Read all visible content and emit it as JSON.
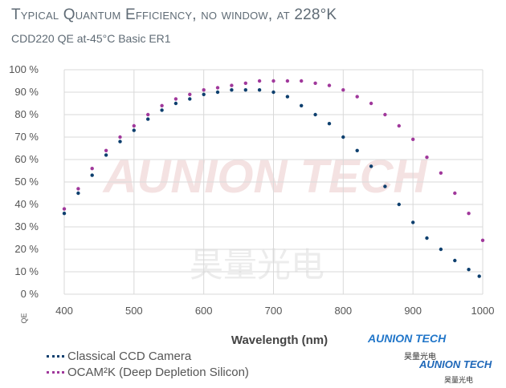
{
  "chart_data": {
    "type": "scatter",
    "title": "Typical Quantum Efficiency, no window, at 228°K",
    "subtitle": "CDD220 QE at-45°C Basic ER1",
    "xlabel": "Wavelength (nm)",
    "ylabel": "QE",
    "xlim": [
      400,
      1000
    ],
    "ylim": [
      0,
      100
    ],
    "x_ticks": [
      "400",
      "500",
      "600",
      "700",
      "800",
      "900",
      "1000"
    ],
    "y_ticks": [
      "0 %",
      "10 %",
      "20 %",
      "30 %",
      "40 %",
      "50 %",
      "60 %",
      "70 %",
      "80 %",
      "90 %",
      "100 %"
    ],
    "grid": true,
    "legend_position": "bottom-left",
    "series": [
      {
        "name": "Classical CCD Camera",
        "color": "#0d3f6e",
        "points": [
          [
            400,
            36
          ],
          [
            420,
            45
          ],
          [
            440,
            53
          ],
          [
            460,
            62
          ],
          [
            480,
            68
          ],
          [
            500,
            73
          ],
          [
            520,
            78
          ],
          [
            540,
            82
          ],
          [
            560,
            85
          ],
          [
            580,
            87
          ],
          [
            600,
            89
          ],
          [
            620,
            90
          ],
          [
            640,
            91
          ],
          [
            660,
            91
          ],
          [
            680,
            91
          ],
          [
            700,
            90
          ],
          [
            720,
            88
          ],
          [
            740,
            84
          ],
          [
            760,
            80
          ],
          [
            780,
            76
          ],
          [
            800,
            70
          ],
          [
            820,
            64
          ],
          [
            840,
            57
          ],
          [
            860,
            48
          ],
          [
            880,
            40
          ],
          [
            900,
            32
          ],
          [
            920,
            25
          ],
          [
            940,
            20
          ],
          [
            960,
            15
          ],
          [
            980,
            11
          ],
          [
            995,
            8
          ]
        ]
      },
      {
        "name": "OCAM²K (Deep Depletion Silicon)",
        "color": "#a0389b",
        "points": [
          [
            400,
            38
          ],
          [
            420,
            47
          ],
          [
            440,
            56
          ],
          [
            460,
            64
          ],
          [
            480,
            70
          ],
          [
            500,
            75
          ],
          [
            520,
            80
          ],
          [
            540,
            84
          ],
          [
            560,
            87
          ],
          [
            580,
            89
          ],
          [
            600,
            91
          ],
          [
            620,
            92
          ],
          [
            640,
            93
          ],
          [
            660,
            94
          ],
          [
            680,
            95
          ],
          [
            700,
            95
          ],
          [
            720,
            95
          ],
          [
            740,
            95
          ],
          [
            760,
            94
          ],
          [
            780,
            93
          ],
          [
            800,
            91
          ],
          [
            820,
            88
          ],
          [
            840,
            85
          ],
          [
            860,
            80
          ],
          [
            880,
            75
          ],
          [
            900,
            69
          ],
          [
            920,
            61
          ],
          [
            940,
            54
          ],
          [
            960,
            45
          ],
          [
            980,
            36
          ],
          [
            1000,
            24
          ]
        ]
      }
    ]
  },
  "watermark": {
    "latin": "AUNION TECH",
    "cjk": "昊量光电"
  },
  "logo": {
    "name": "AUNION TECH",
    "tagline": "昊量光电"
  }
}
